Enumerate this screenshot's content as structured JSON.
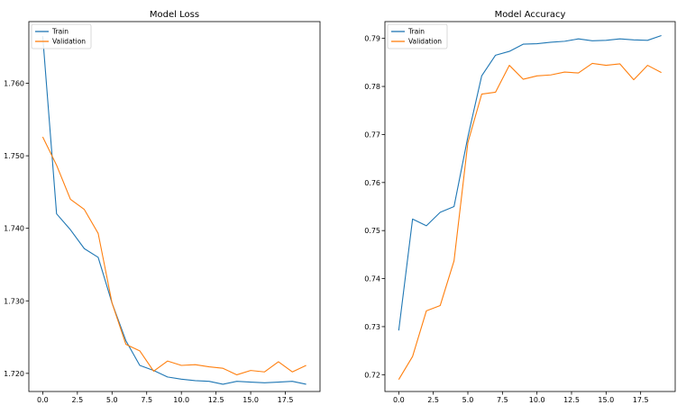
{
  "chart_data": [
    {
      "type": "line",
      "title": "Model Loss",
      "xlabel": "",
      "ylabel": "",
      "xlim": [
        -1.0,
        20.0
      ],
      "ylim": [
        1.7175,
        1.7685
      ],
      "xticks": [
        0.0,
        2.5,
        5.0,
        7.5,
        10.0,
        12.5,
        15.0,
        17.5
      ],
      "xtick_labels": [
        "0.0",
        "2.5",
        "5.0",
        "7.5",
        "10.0",
        "12.5",
        "15.0",
        "17.5"
      ],
      "yticks": [
        1.72,
        1.73,
        1.74,
        1.75,
        1.76
      ],
      "ytick_labels": [
        "1.720",
        "1.730",
        "1.740",
        "1.750",
        "1.760"
      ],
      "legend": "top-left",
      "grid": false,
      "x": [
        0,
        1,
        2,
        3,
        4,
        5,
        6,
        7,
        8,
        9,
        10,
        11,
        12,
        13,
        14,
        15,
        16,
        17,
        18,
        19
      ],
      "series": [
        {
          "name": "Train",
          "color": "#1f77b4",
          "values": [
            1.7665,
            1.742,
            1.7398,
            1.7372,
            1.736,
            1.7297,
            1.7245,
            1.7211,
            1.7204,
            1.7195,
            1.7192,
            1.719,
            1.7189,
            1.7185,
            1.7189,
            1.7188,
            1.7187,
            1.7188,
            1.7189,
            1.7185
          ]
        },
        {
          "name": "Validation",
          "color": "#ff7f0e",
          "values": [
            1.7526,
            1.7487,
            1.744,
            1.7426,
            1.7393,
            1.7297,
            1.724,
            1.7231,
            1.7203,
            1.7217,
            1.7211,
            1.7212,
            1.7209,
            1.7207,
            1.7198,
            1.7204,
            1.7202,
            1.7216,
            1.7202,
            1.7211
          ]
        }
      ]
    },
    {
      "type": "line",
      "title": "Model Accuracy",
      "xlabel": "",
      "ylabel": "",
      "xlim": [
        -1.0,
        20.0
      ],
      "ylim": [
        0.7165,
        0.7935
      ],
      "xticks": [
        0.0,
        2.5,
        5.0,
        7.5,
        10.0,
        12.5,
        15.0,
        17.5
      ],
      "xtick_labels": [
        "0.0",
        "2.5",
        "5.0",
        "7.5",
        "10.0",
        "12.5",
        "15.0",
        "17.5"
      ],
      "yticks": [
        0.72,
        0.73,
        0.74,
        0.75,
        0.76,
        0.77,
        0.78,
        0.79
      ],
      "ytick_labels": [
        "0.72",
        "0.73",
        "0.74",
        "0.75",
        "0.76",
        "0.77",
        "0.78",
        "0.79"
      ],
      "legend": "top-left",
      "grid": false,
      "x": [
        0,
        1,
        2,
        3,
        4,
        5,
        6,
        7,
        8,
        9,
        10,
        11,
        12,
        13,
        14,
        15,
        16,
        17,
        18,
        19
      ],
      "series": [
        {
          "name": "Train",
          "color": "#1f77b4",
          "values": [
            0.7292,
            0.7524,
            0.751,
            0.7538,
            0.755,
            0.7695,
            0.7822,
            0.7865,
            0.7873,
            0.7888,
            0.7889,
            0.7892,
            0.7894,
            0.7899,
            0.7895,
            0.7896,
            0.7899,
            0.7897,
            0.7896,
            0.7906
          ]
        },
        {
          "name": "Validation",
          "color": "#ff7f0e",
          "values": [
            0.719,
            0.7238,
            0.7333,
            0.7344,
            0.7437,
            0.7683,
            0.7784,
            0.7788,
            0.7844,
            0.7815,
            0.7822,
            0.7824,
            0.783,
            0.7828,
            0.7848,
            0.7844,
            0.7847,
            0.7814,
            0.7844,
            0.7829
          ]
        }
      ]
    }
  ]
}
